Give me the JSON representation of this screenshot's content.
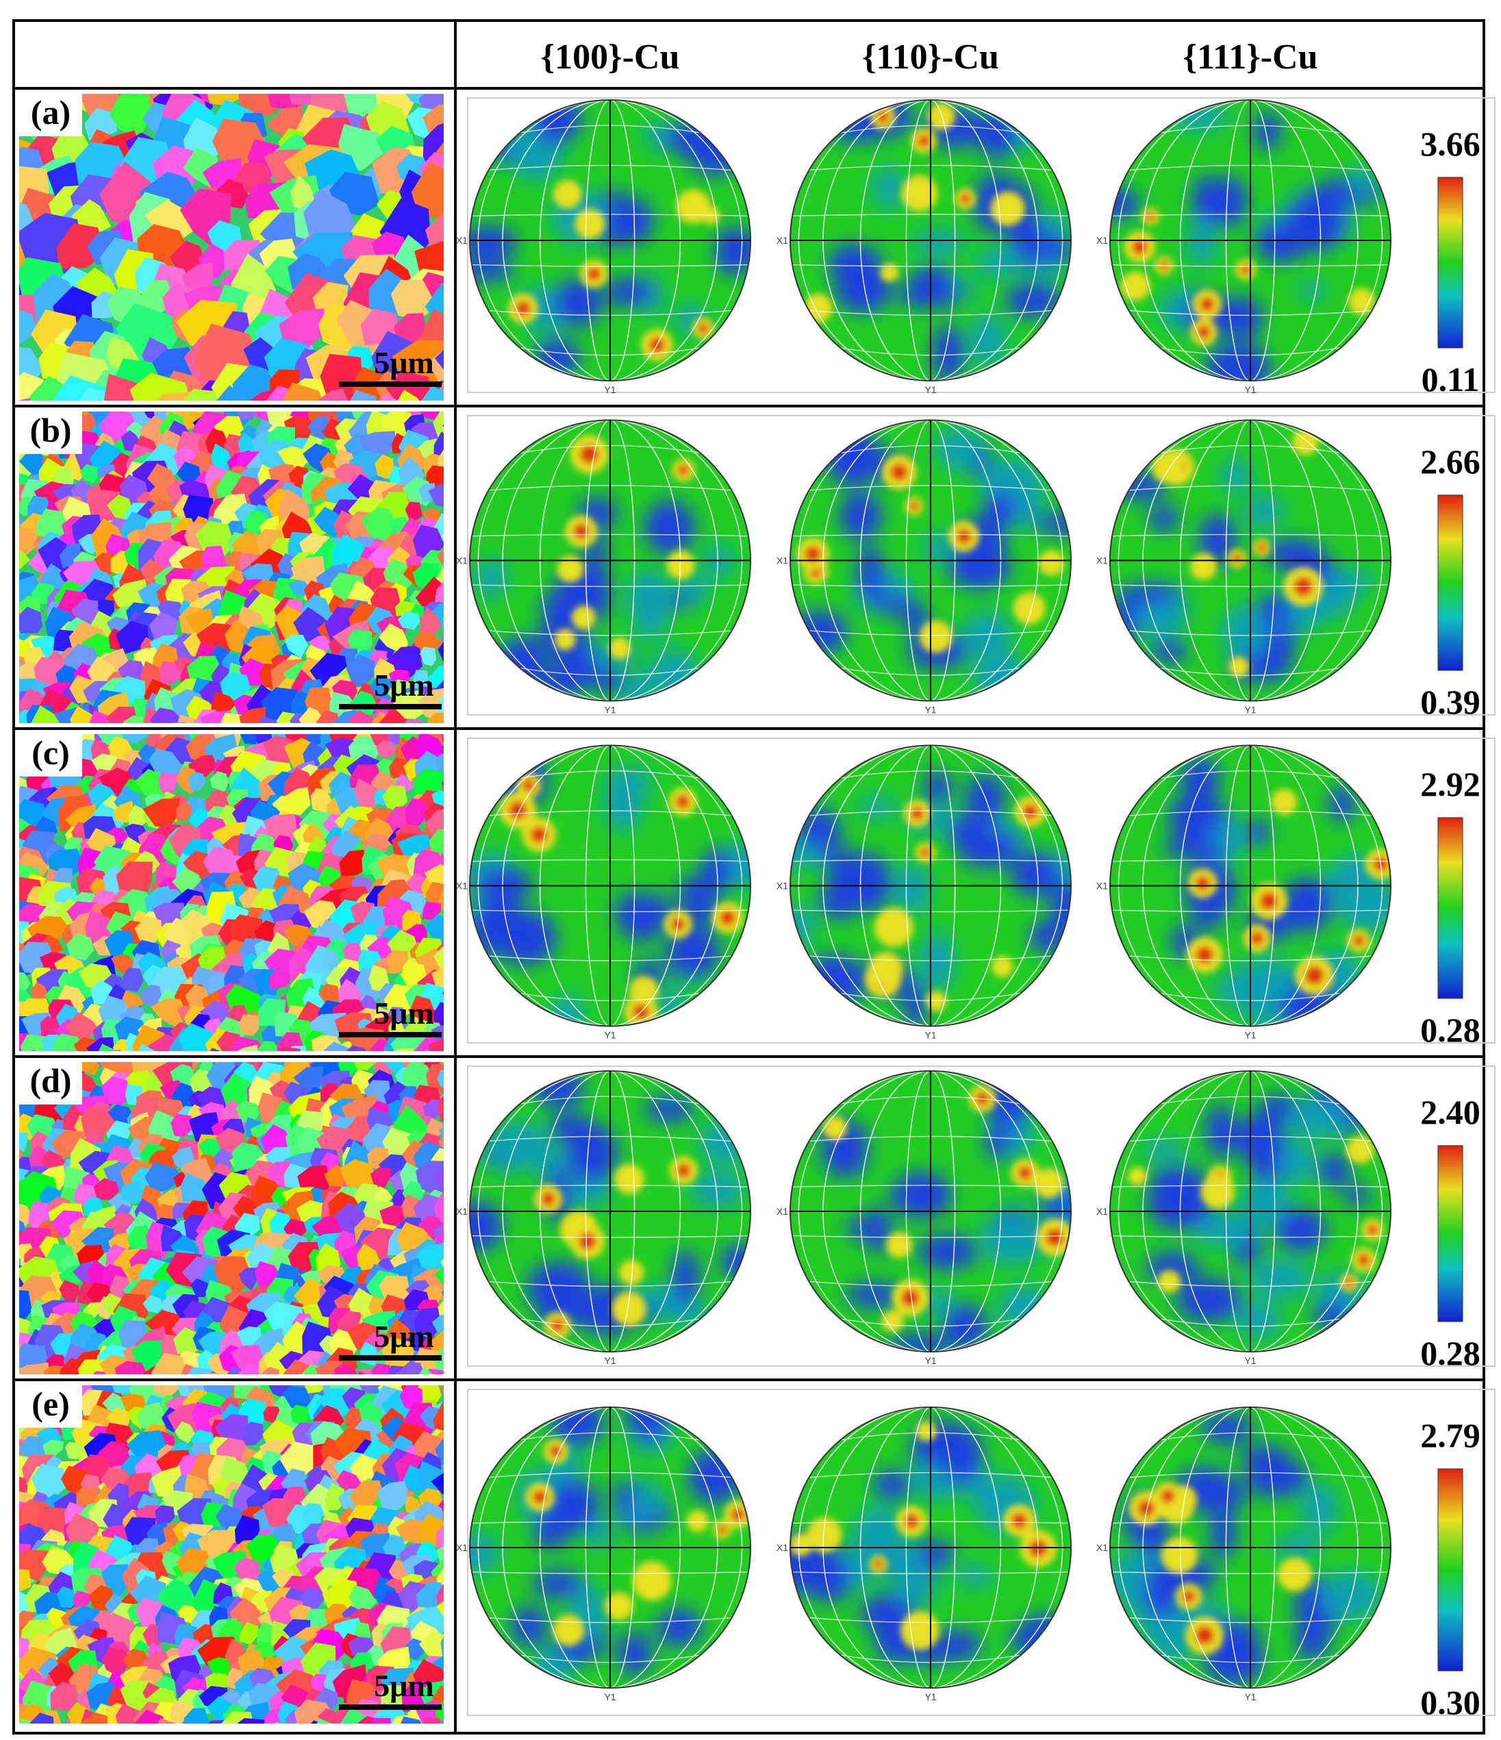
{
  "header": {
    "columns": [
      "{100}-Cu",
      "{110}-Cu",
      "{111}-Cu"
    ]
  },
  "axis_labels": {
    "x": "X1",
    "y": "Y1"
  },
  "rows": [
    {
      "label": "(a)",
      "scale_bar": "5μm",
      "max": "3.66",
      "min": "0.11"
    },
    {
      "label": "(b)",
      "scale_bar": "5μm",
      "max": "2.66",
      "min": "0.39"
    },
    {
      "label": "(c)",
      "scale_bar": "5μm",
      "max": "2.92",
      "min": "0.28"
    },
    {
      "label": "(d)",
      "scale_bar": "5μm",
      "max": "2.40",
      "min": "0.28"
    },
    {
      "label": "(e)",
      "scale_bar": "5μm",
      "max": "2.79",
      "min": "0.30"
    }
  ]
}
